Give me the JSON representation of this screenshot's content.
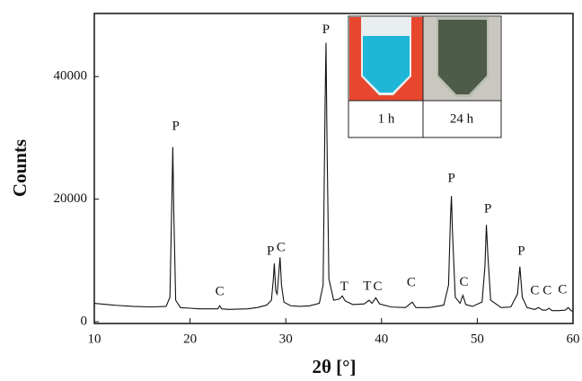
{
  "chart_data": {
    "type": "line",
    "xlabel": "2θ [°]",
    "ylabel": "Counts",
    "xlim": [
      10,
      60
    ],
    "ylim": [
      0,
      50000
    ],
    "xticks": [
      10,
      20,
      30,
      40,
      50,
      60
    ],
    "yticks": [
      0,
      20000,
      40000
    ],
    "color": "#111111",
    "x": [
      10,
      12,
      14,
      16,
      17.5,
      17.9,
      18.1,
      18.2,
      18.3,
      18.5,
      19,
      20,
      21,
      22,
      22.9,
      23.1,
      23.3,
      24,
      26,
      27,
      28,
      28.5,
      28.7,
      28.8,
      28.95,
      29.1,
      29.3,
      29.4,
      29.55,
      29.8,
      30.5,
      31.5,
      32.5,
      33.5,
      33.9,
      34.1,
      34.2,
      34.3,
      34.5,
      35,
      35.6,
      35.9,
      36.2,
      37,
      38.2,
      38.7,
      39.0,
      39.4,
      39.8,
      41,
      42.5,
      43.2,
      43.6,
      45,
      46.5,
      47.0,
      47.2,
      47.3,
      47.4,
      47.7,
      48.2,
      48.5,
      48.8,
      49.5,
      50.5,
      50.8,
      50.95,
      51.1,
      51.4,
      52.5,
      53.5,
      54.2,
      54.45,
      54.7,
      55.2,
      56.0,
      56.4,
      56.8,
      57.2,
      57.5,
      57.8,
      58.5,
      59.2,
      59.5,
      59.8,
      60
    ],
    "values": [
      3000,
      2700,
      2500,
      2400,
      2500,
      4000,
      20000,
      28500,
      18000,
      3500,
      2300,
      2200,
      2100,
      2100,
      2100,
      2600,
      2100,
      2000,
      2100,
      2300,
      2700,
      3500,
      7000,
      9500,
      5000,
      4500,
      8500,
      10500,
      6000,
      3200,
      2600,
      2500,
      2600,
      3000,
      6000,
      35000,
      45500,
      30000,
      7000,
      3500,
      3700,
      4200,
      3400,
      2800,
      2900,
      3500,
      3000,
      3900,
      2900,
      2400,
      2300,
      3200,
      2300,
      2300,
      2700,
      6000,
      17000,
      20500,
      15000,
      4000,
      3000,
      4300,
      2800,
      2500,
      3200,
      9000,
      15800,
      11000,
      3500,
      2300,
      2400,
      4500,
      9000,
      4000,
      2300,
      2000,
      2300,
      1900,
      1900,
      2200,
      1800,
      1800,
      1900,
      2300,
      1800,
      1700
    ],
    "annotations": [
      {
        "text": "P",
        "x": 18.5,
        "y": 31800
      },
      {
        "text": "C",
        "x": 23.1,
        "y": 4800
      },
      {
        "text": "P",
        "x": 28.4,
        "y": 11400
      },
      {
        "text": "C",
        "x": 29.5,
        "y": 12000
      },
      {
        "text": "P",
        "x": 34.2,
        "y": 47600
      },
      {
        "text": "T",
        "x": 36.1,
        "y": 5600
      },
      {
        "text": "T",
        "x": 38.5,
        "y": 5700
      },
      {
        "text": "C",
        "x": 39.6,
        "y": 5600
      },
      {
        "text": "C",
        "x": 43.1,
        "y": 6300
      },
      {
        "text": "P",
        "x": 47.3,
        "y": 23300
      },
      {
        "text": "C",
        "x": 48.6,
        "y": 6400
      },
      {
        "text": "P",
        "x": 51.1,
        "y": 18300
      },
      {
        "text": "P",
        "x": 54.6,
        "y": 11400
      },
      {
        "text": "C",
        "x": 56.0,
        "y": 5000
      },
      {
        "text": "C",
        "x": 57.3,
        "y": 5000
      },
      {
        "text": "C",
        "x": 58.9,
        "y": 5100
      }
    ],
    "inset_labels": [
      "1 h",
      "24 h"
    ]
  }
}
